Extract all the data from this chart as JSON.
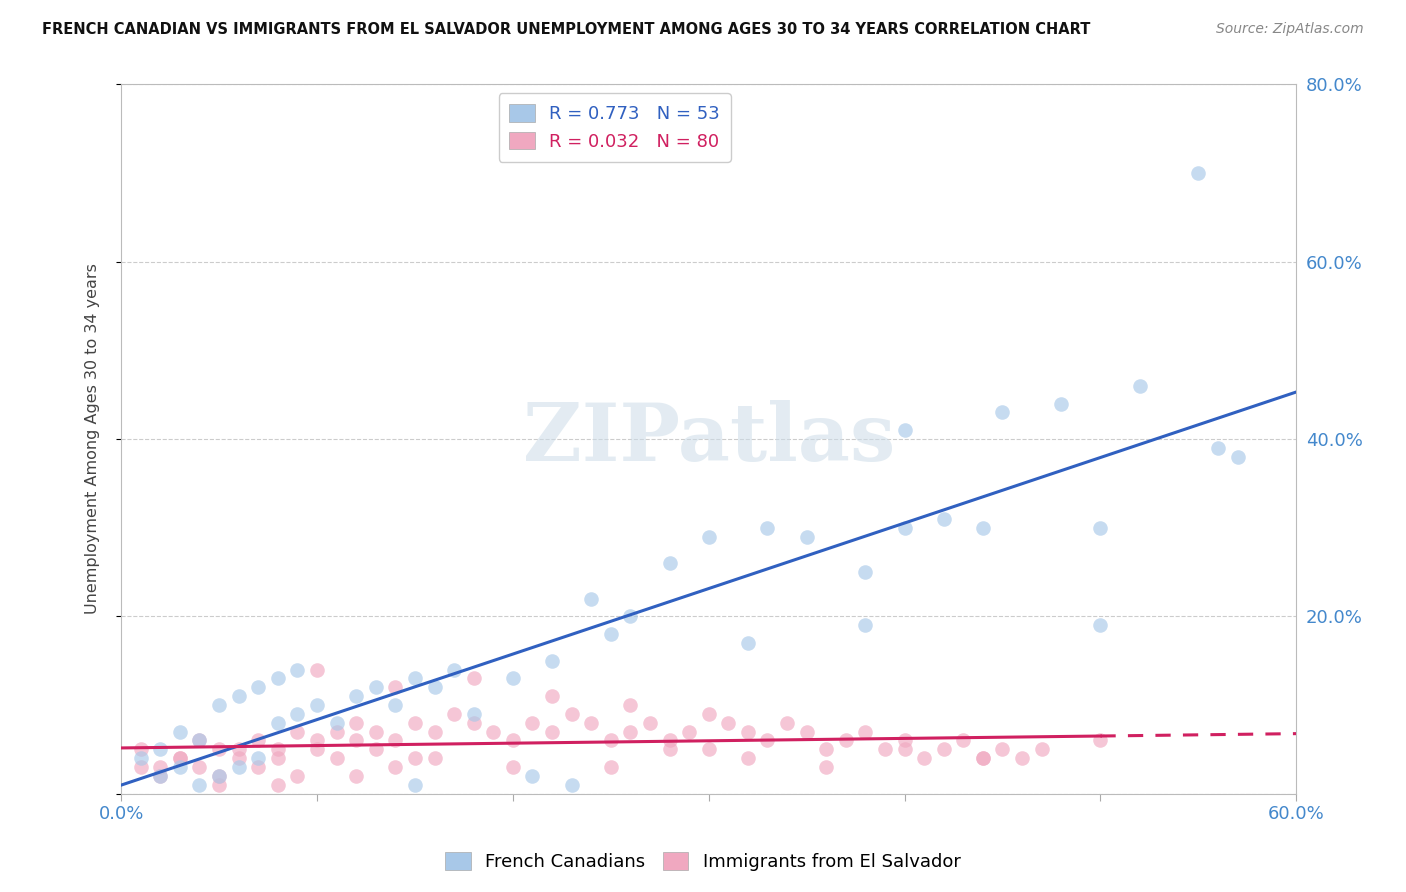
{
  "title": "FRENCH CANADIAN VS IMMIGRANTS FROM EL SALVADOR UNEMPLOYMENT AMONG AGES 30 TO 34 YEARS CORRELATION CHART",
  "source": "Source: ZipAtlas.com",
  "ylabel": "Unemployment Among Ages 30 to 34 years",
  "xlim": [
    0,
    0.6
  ],
  "ylim": [
    0,
    0.8
  ],
  "blue_R": "0.773",
  "blue_N": "53",
  "pink_R": "0.032",
  "pink_N": "80",
  "blue_color": "#a8c8e8",
  "pink_color": "#f0a8c0",
  "blue_line_color": "#3060c0",
  "pink_line_color": "#d02060",
  "background_color": "#ffffff",
  "grid_color": "#cccccc",
  "blue_scatter_x": [
    0.02,
    0.03,
    0.04,
    0.01,
    0.02,
    0.05,
    0.06,
    0.07,
    0.03,
    0.04,
    0.08,
    0.09,
    0.1,
    0.11,
    0.12,
    0.13,
    0.14,
    0.15,
    0.16,
    0.17,
    0.05,
    0.06,
    0.07,
    0.08,
    0.09,
    0.2,
    0.22,
    0.24,
    0.26,
    0.28,
    0.3,
    0.33,
    0.35,
    0.38,
    0.4,
    0.42,
    0.45,
    0.48,
    0.5,
    0.52,
    0.55,
    0.4,
    0.15,
    0.18,
    0.25,
    0.32,
    0.38,
    0.44,
    0.5,
    0.56,
    0.57,
    0.21,
    0.23
  ],
  "blue_scatter_y": [
    0.02,
    0.03,
    0.01,
    0.04,
    0.05,
    0.02,
    0.03,
    0.04,
    0.07,
    0.06,
    0.08,
    0.09,
    0.1,
    0.08,
    0.11,
    0.12,
    0.1,
    0.13,
    0.12,
    0.14,
    0.1,
    0.11,
    0.12,
    0.13,
    0.14,
    0.13,
    0.15,
    0.22,
    0.2,
    0.26,
    0.29,
    0.3,
    0.29,
    0.19,
    0.3,
    0.31,
    0.43,
    0.44,
    0.3,
    0.46,
    0.7,
    0.41,
    0.01,
    0.09,
    0.18,
    0.17,
    0.25,
    0.3,
    0.19,
    0.39,
    0.38,
    0.02,
    0.01
  ],
  "pink_scatter_x": [
    0.01,
    0.02,
    0.03,
    0.04,
    0.05,
    0.06,
    0.07,
    0.08,
    0.09,
    0.1,
    0.11,
    0.12,
    0.13,
    0.14,
    0.15,
    0.01,
    0.02,
    0.03,
    0.04,
    0.05,
    0.06,
    0.07,
    0.08,
    0.09,
    0.1,
    0.11,
    0.12,
    0.13,
    0.14,
    0.15,
    0.16,
    0.17,
    0.18,
    0.19,
    0.2,
    0.21,
    0.22,
    0.23,
    0.24,
    0.25,
    0.26,
    0.27,
    0.28,
    0.29,
    0.3,
    0.31,
    0.32,
    0.33,
    0.34,
    0.35,
    0.36,
    0.37,
    0.38,
    0.39,
    0.4,
    0.41,
    0.42,
    0.43,
    0.44,
    0.45,
    0.46,
    0.47,
    0.1,
    0.14,
    0.18,
    0.22,
    0.26,
    0.3,
    0.5,
    0.25,
    0.12,
    0.08,
    0.05,
    0.16,
    0.2,
    0.28,
    0.32,
    0.36,
    0.4,
    0.44
  ],
  "pink_scatter_y": [
    0.03,
    0.02,
    0.04,
    0.03,
    0.02,
    0.05,
    0.03,
    0.04,
    0.02,
    0.05,
    0.04,
    0.06,
    0.05,
    0.03,
    0.04,
    0.05,
    0.03,
    0.04,
    0.06,
    0.05,
    0.04,
    0.06,
    0.05,
    0.07,
    0.06,
    0.07,
    0.08,
    0.07,
    0.06,
    0.08,
    0.07,
    0.09,
    0.08,
    0.07,
    0.06,
    0.08,
    0.07,
    0.09,
    0.08,
    0.06,
    0.07,
    0.08,
    0.06,
    0.07,
    0.05,
    0.08,
    0.07,
    0.06,
    0.08,
    0.07,
    0.05,
    0.06,
    0.07,
    0.05,
    0.06,
    0.04,
    0.05,
    0.06,
    0.04,
    0.05,
    0.04,
    0.05,
    0.14,
    0.12,
    0.13,
    0.11,
    0.1,
    0.09,
    0.06,
    0.03,
    0.02,
    0.01,
    0.01,
    0.04,
    0.03,
    0.05,
    0.04,
    0.03,
    0.05,
    0.04
  ]
}
